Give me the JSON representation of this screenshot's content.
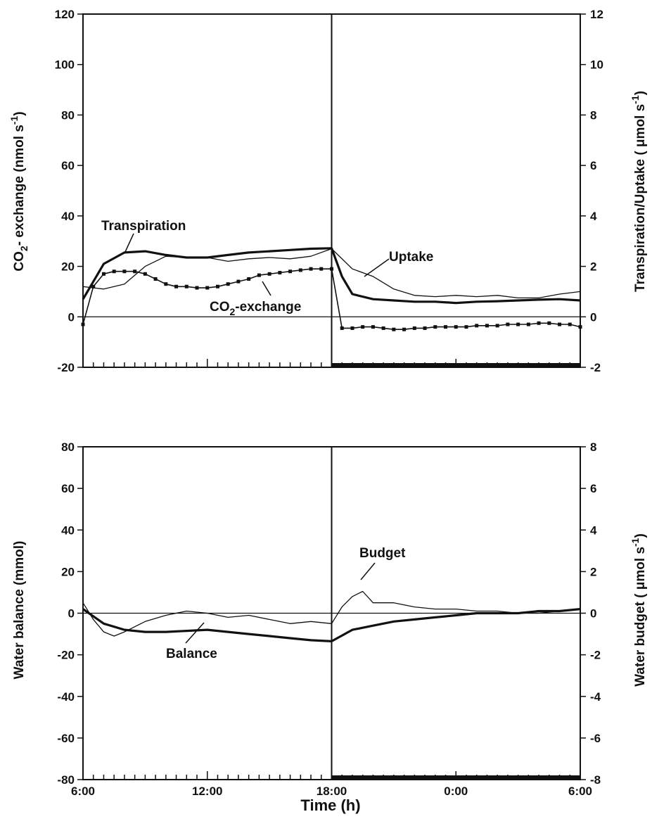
{
  "x_axis": {
    "title": "Time (h)",
    "tick_labels": [
      "6:00",
      "12:00",
      "18:00",
      "0:00",
      "6:00"
    ]
  },
  "chart_data": [
    {
      "type": "line",
      "panel": "top",
      "title": "",
      "x_unit": "hours from 6:00",
      "xlim": [
        0,
        24
      ],
      "ylim_left": [
        -20,
        120
      ],
      "ylim_right": [
        -2,
        12
      ],
      "yticks_left": [
        "-20",
        "0",
        "20",
        "40",
        "60",
        "80",
        "100",
        "120"
      ],
      "yticks_right": [
        "-2",
        "0",
        "2",
        "4",
        "6",
        "8",
        "10",
        "12"
      ],
      "ylabel_left": "CO2 - exchange (nmol s-1)",
      "ylabel_left_parts": [
        "CO",
        "2",
        "- exchange (nmol s",
        "-1",
        ")"
      ],
      "ylabel_right": "Transpiration/Uptake ( μmol s-1)",
      "ylabel_right_parts": [
        "Transpiration/Uptake ( μmol s",
        "-1",
        ")"
      ],
      "dark_period": [
        12,
        24
      ],
      "annotations": {
        "transpiration": "Transpiration",
        "uptake": "Uptake",
        "co2_main": "CO",
        "co2_sub": "2",
        "co2_rest": "-exchange"
      },
      "series": [
        {
          "name": "Transpiration",
          "axis": "right",
          "style": "thick",
          "x": [
            0,
            1,
            2,
            3,
            4,
            5,
            6,
            7,
            8,
            9,
            10,
            11,
            12,
            12.5,
            13,
            14,
            15,
            16,
            17,
            18,
            19,
            20,
            21,
            22,
            23,
            24
          ],
          "y": [
            0.7,
            2.1,
            2.55,
            2.6,
            2.45,
            2.35,
            2.35,
            2.45,
            2.55,
            2.6,
            2.65,
            2.7,
            2.72,
            1.6,
            0.9,
            0.7,
            0.65,
            0.6,
            0.6,
            0.55,
            0.6,
            0.62,
            0.65,
            0.68,
            0.7,
            0.65
          ]
        },
        {
          "name": "Uptake",
          "axis": "right",
          "style": "thin",
          "x": [
            0,
            1,
            2,
            3,
            4,
            5,
            6,
            7,
            8,
            9,
            10,
            11,
            12,
            13,
            14,
            15,
            16,
            17,
            18,
            19,
            20,
            21,
            22,
            23,
            24
          ],
          "y": [
            1.2,
            1.1,
            1.3,
            2.0,
            2.4,
            2.35,
            2.35,
            2.2,
            2.3,
            2.35,
            2.3,
            2.4,
            2.7,
            1.9,
            1.6,
            1.1,
            0.85,
            0.8,
            0.85,
            0.8,
            0.85,
            0.75,
            0.75,
            0.9,
            1.0
          ]
        },
        {
          "name": "CO2-exchange",
          "axis": "left",
          "style": "dotted",
          "x": [
            0,
            0.5,
            1,
            1.5,
            2,
            2.5,
            3,
            3.5,
            4,
            4.5,
            5,
            5.5,
            6,
            6.5,
            7,
            7.5,
            8,
            8.5,
            9,
            9.5,
            10,
            10.5,
            11,
            11.5,
            12,
            12.5,
            13,
            13.5,
            14,
            14.5,
            15,
            15.5,
            16,
            16.5,
            17,
            17.5,
            18,
            18.5,
            19,
            19.5,
            20,
            20.5,
            21,
            21.5,
            22,
            22.5,
            23,
            23.5,
            24
          ],
          "y": [
            -3,
            12,
            17,
            18,
            18,
            18,
            17,
            15,
            13,
            12,
            12,
            11.5,
            11.5,
            12,
            13,
            14,
            15,
            16.5,
            17,
            17.5,
            18,
            18.5,
            19,
            19,
            19,
            -4.5,
            -4.5,
            -4,
            -4,
            -4.5,
            -5,
            -5,
            -4.5,
            -4.5,
            -4,
            -4,
            -4,
            -4,
            -3.5,
            -3.5,
            -3.5,
            -3,
            -3,
            -3,
            -2.5,
            -2.5,
            -3,
            -3,
            -4
          ]
        }
      ]
    },
    {
      "type": "line",
      "panel": "bottom",
      "title": "",
      "x_unit": "hours from 6:00",
      "xlim": [
        0,
        24
      ],
      "ylim_left": [
        -80,
        80
      ],
      "ylim_right": [
        -8,
        8
      ],
      "yticks_left": [
        "-80",
        "-60",
        "-40",
        "-20",
        "0",
        "20",
        "40",
        "60",
        "80"
      ],
      "yticks_right": [
        "-8",
        "-6",
        "-4",
        "-2",
        "0",
        "2",
        "4",
        "6",
        "8"
      ],
      "ylabel_left": "Water balance (mmol)",
      "ylabel_right": "Water budget ( μmol s-1)",
      "ylabel_right_parts": [
        "Water budget ( μmol s",
        "-1",
        ")"
      ],
      "dark_period": [
        12,
        24
      ],
      "annotations": {
        "budget": "Budget",
        "balance": "Balance"
      },
      "series": [
        {
          "name": "Balance",
          "axis": "left",
          "style": "thick",
          "x": [
            0,
            1,
            2,
            3,
            4,
            5,
            6,
            7,
            8,
            9,
            10,
            11,
            12,
            13,
            14,
            15,
            16,
            17,
            18,
            19,
            20,
            21,
            22,
            23,
            24
          ],
          "y": [
            2,
            -5,
            -8,
            -9,
            -9,
            -8.5,
            -8,
            -9,
            -10,
            -11,
            -12,
            -13,
            -13.5,
            -8,
            -6,
            -4,
            -3,
            -2,
            -1,
            0,
            0,
            0,
            1,
            1,
            2
          ]
        },
        {
          "name": "Budget",
          "axis": "right",
          "style": "thin",
          "x": [
            0,
            0.5,
            1,
            1.5,
            2,
            3,
            4,
            5,
            6,
            7,
            8,
            9,
            10,
            11,
            12,
            12.5,
            13,
            13.5,
            14,
            15,
            16,
            17,
            18,
            19,
            20,
            21,
            22,
            23,
            24
          ],
          "y": [
            0.5,
            -0.3,
            -0.9,
            -1.1,
            -0.9,
            -0.4,
            -0.1,
            0.1,
            0.0,
            -0.2,
            -0.1,
            -0.3,
            -0.5,
            -0.4,
            -0.5,
            0.3,
            0.8,
            1.05,
            0.5,
            0.5,
            0.3,
            0.2,
            0.2,
            0.1,
            0.1,
            0.0,
            0.0,
            0.1,
            0.2
          ]
        }
      ]
    }
  ]
}
